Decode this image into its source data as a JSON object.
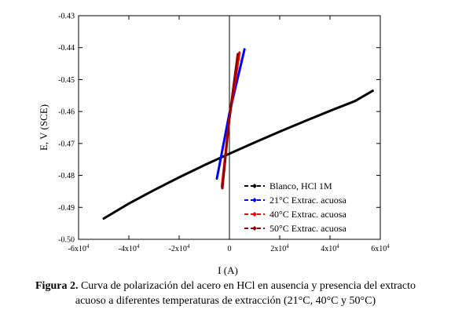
{
  "chart_data": {
    "type": "line",
    "xlabel": "I (A)",
    "ylabel": "E, V (SCE)",
    "xlim": [
      -60000,
      60000
    ],
    "ylim": [
      -0.5,
      -0.43
    ],
    "x_ticks": [
      -60000,
      -40000,
      -20000,
      0,
      20000,
      40000,
      60000
    ],
    "x_tick_labels": [
      {
        "base": "-6x10",
        "exp": "4"
      },
      {
        "base": "-4x10",
        "exp": "4"
      },
      {
        "base": "-2x10",
        "exp": "4"
      },
      {
        "base": "0",
        "exp": ""
      },
      {
        "base": "2x10",
        "exp": "4"
      },
      {
        "base": "4x10",
        "exp": "4"
      },
      {
        "base": "6x10",
        "exp": "4"
      }
    ],
    "y_ticks": [
      -0.5,
      -0.49,
      -0.48,
      -0.47,
      -0.46,
      -0.45,
      -0.44,
      -0.43
    ],
    "y_tick_labels": [
      "-0.50",
      "-0.49",
      "-0.48",
      "-0.47",
      "-0.46",
      "-0.45",
      "-0.44",
      "-0.43"
    ],
    "legend_position": "bottom-right",
    "series": [
      {
        "name": "Blanco, HCl 1M",
        "color": "#000000",
        "marker": "diamond",
        "x": [
          -50000,
          -40000,
          -30000,
          -20000,
          -10000,
          0,
          10000,
          20000,
          30000,
          40000,
          50000,
          57000
        ],
        "y": [
          -0.4935,
          -0.4888,
          -0.4846,
          -0.4806,
          -0.4768,
          -0.4732,
          -0.4697,
          -0.4663,
          -0.463,
          -0.4598,
          -0.4567,
          -0.4535
        ]
      },
      {
        "name": "21°C Extrac. acuosa",
        "color": "#0000ff",
        "marker": "diamond",
        "x": [
          -5000,
          0,
          6000
        ],
        "y": [
          -0.481,
          -0.4605,
          -0.4405
        ]
      },
      {
        "name": "40°C Extrac. acuosa",
        "color": "#ff0000",
        "marker": "diamond",
        "x": [
          -3000,
          0,
          4000
        ],
        "y": [
          -0.4835,
          -0.462,
          -0.4415
        ]
      },
      {
        "name": "50°C Extrac. acuosa",
        "color": "#990000",
        "marker": "diamond",
        "x": [
          -2800,
          0,
          3300
        ],
        "y": [
          -0.484,
          -0.462,
          -0.442
        ]
      }
    ]
  },
  "caption": {
    "prefix": "Figura 2.",
    "line1": " Curva de polarización del acero en HCl en ausencia y presencia del extracto",
    "line2": "acuoso a diferentes temperaturas de extracción (21°C, 40°C y 50°C)"
  }
}
